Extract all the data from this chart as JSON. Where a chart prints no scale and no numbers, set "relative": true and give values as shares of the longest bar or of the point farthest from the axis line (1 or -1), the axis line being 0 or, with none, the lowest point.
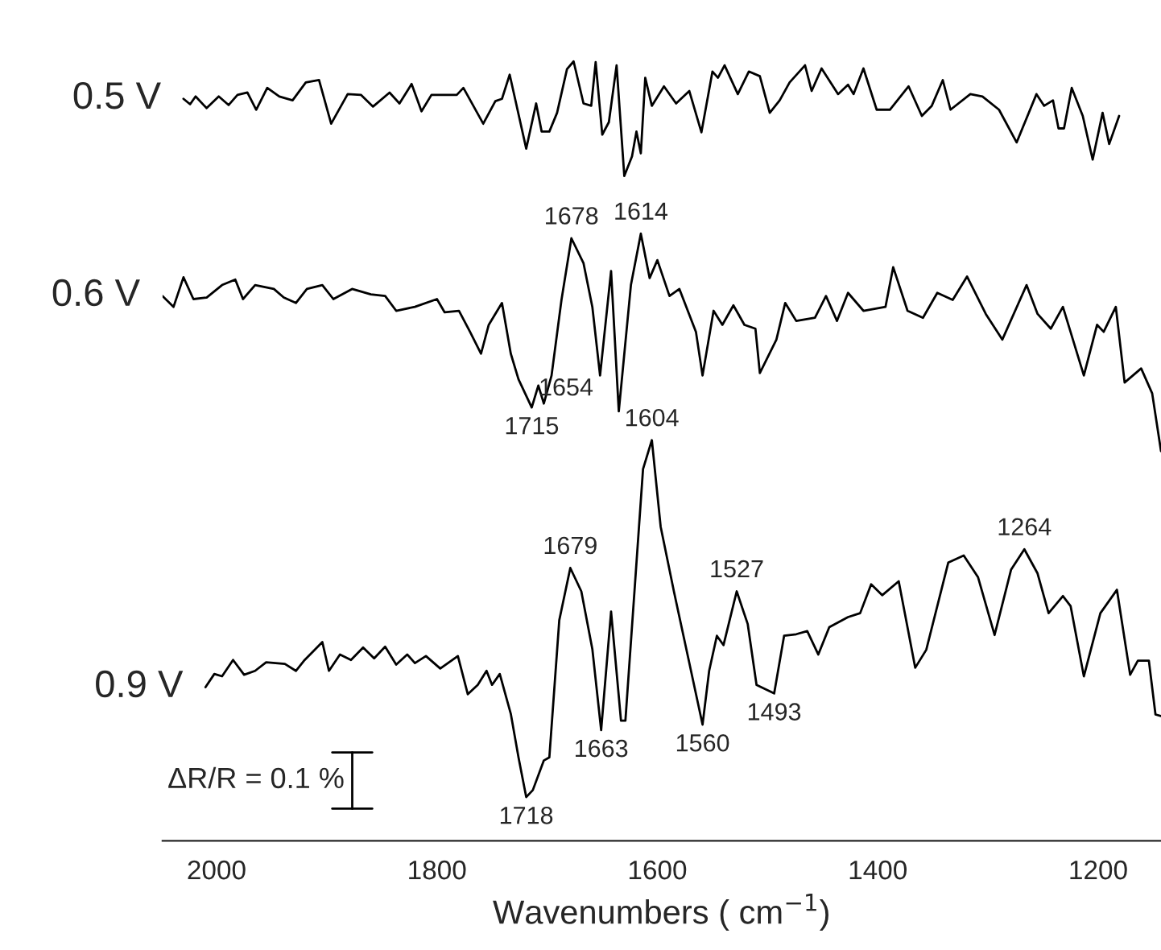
{
  "chart_data": {
    "type": "line",
    "relative": true,
    "xlabel": "Wavenumbers ( cm$^{−1}$)",
    "xlim": [
      2049,
      1143
    ],
    "xticks": [
      2000,
      1800,
      1600,
      1400,
      1200
    ],
    "tick_labels": "x",
    "grid": false,
    "legend": false,
    "marker": "none",
    "line_style": "solid",
    "series": [
      {
        "name": "0.5 V",
        "color": "#000000",
        "x": [
          2030,
          2024,
          2019,
          2009,
          1998,
          1989,
          1981,
          1972,
          1964,
          1954,
          1943,
          1931,
          1919,
          1907,
          1896,
          1881,
          1869,
          1858,
          1843,
          1834,
          1823,
          1814,
          1805,
          1782,
          1776,
          1758,
          1747,
          1741,
          1734,
          1719,
          1710,
          1705,
          1698,
          1691,
          1682,
          1676,
          1667,
          1660,
          1656,
          1650,
          1644,
          1637,
          1630,
          1623,
          1619,
          1615,
          1611,
          1605,
          1594,
          1583,
          1571,
          1560,
          1550,
          1545,
          1539,
          1527,
          1517,
          1507,
          1498,
          1489,
          1480,
          1466,
          1460,
          1451,
          1436,
          1427,
          1422,
          1413,
          1401,
          1389,
          1372,
          1360,
          1351,
          1341,
          1334,
          1316,
          1305,
          1290,
          1274,
          1256,
          1249,
          1241,
          1236,
          1231,
          1224,
          1214,
          1205,
          1196,
          1190,
          1181
        ],
        "values": [
          0.952,
          0.945,
          0.955,
          0.94,
          0.955,
          0.944,
          0.957,
          0.96,
          0.938,
          0.966,
          0.955,
          0.95,
          0.973,
          0.976,
          0.92,
          0.958,
          0.957,
          0.942,
          0.96,
          0.946,
          0.971,
          0.936,
          0.957,
          0.957,
          0.966,
          0.92,
          0.949,
          0.952,
          0.983,
          0.888,
          0.946,
          0.91,
          0.91,
          0.934,
          0.99,
          1.0,
          0.946,
          0.943,
          0.999,
          0.906,
          0.922,
          0.995,
          0.853,
          0.878,
          0.91,
          0.882,
          0.979,
          0.943,
          0.968,
          0.946,
          0.962,
          0.909,
          0.987,
          0.979,
          0.995,
          0.958,
          0.987,
          0.981,
          0.934,
          0.95,
          0.973,
          0.995,
          0.962,
          0.991,
          0.958,
          0.97,
          0.958,
          0.991,
          0.938,
          0.938,
          0.968,
          0.93,
          0.943,
          0.976,
          0.938,
          0.958,
          0.955,
          0.938,
          0.896,
          0.958,
          0.943,
          0.95,
          0.914,
          0.914,
          0.966,
          0.93,
          0.874,
          0.934,
          0.894,
          0.93
        ]
      },
      {
        "name": "0.6 V",
        "color": "#000000",
        "x": [
          2049,
          2039,
          2030,
          2021,
          2009,
          1995,
          1983,
          1976,
          1965,
          1948,
          1939,
          1928,
          1918,
          1904,
          1894,
          1877,
          1860,
          1847,
          1837,
          1820,
          1800,
          1793,
          1780,
          1770,
          1760,
          1753,
          1741,
          1733,
          1726,
          1714,
          1708,
          1703,
          1696,
          1687,
          1678,
          1667,
          1659,
          1652,
          1642,
          1635,
          1624,
          1615,
          1607,
          1600,
          1589,
          1580,
          1565,
          1559,
          1549,
          1541,
          1531,
          1521,
          1511,
          1507,
          1492,
          1484,
          1474,
          1457,
          1447,
          1437,
          1427,
          1413,
          1393,
          1386,
          1373,
          1359,
          1346,
          1332,
          1319,
          1302,
          1287,
          1265,
          1255,
          1243,
          1232,
          1213,
          1201,
          1195,
          1184,
          1176,
          1161,
          1151,
          1143
        ],
        "values": [
          0.699,
          0.685,
          0.723,
          0.695,
          0.697,
          0.713,
          0.72,
          0.695,
          0.713,
          0.708,
          0.697,
          0.69,
          0.708,
          0.713,
          0.695,
          0.708,
          0.701,
          0.699,
          0.68,
          0.685,
          0.695,
          0.678,
          0.68,
          0.653,
          0.625,
          0.662,
          0.69,
          0.625,
          0.592,
          0.556,
          0.584,
          0.561,
          0.597,
          0.694,
          0.773,
          0.741,
          0.685,
          0.597,
          0.731,
          0.551,
          0.713,
          0.779,
          0.722,
          0.745,
          0.699,
          0.708,
          0.653,
          0.597,
          0.68,
          0.662,
          0.687,
          0.662,
          0.657,
          0.6,
          0.643,
          0.69,
          0.667,
          0.671,
          0.699,
          0.667,
          0.703,
          0.68,
          0.685,
          0.736,
          0.68,
          0.671,
          0.703,
          0.694,
          0.724,
          0.676,
          0.643,
          0.713,
          0.676,
          0.657,
          0.685,
          0.597,
          0.662,
          0.653,
          0.685,
          0.588,
          0.606,
          0.574,
          0.5
        ]
      },
      {
        "name": "0.9 V",
        "color": "#000000",
        "x": [
          2010,
          2002,
          1995,
          1985,
          1975,
          1965,
          1955,
          1938,
          1928,
          1920,
          1904,
          1898,
          1888,
          1878,
          1867,
          1857,
          1847,
          1837,
          1827,
          1820,
          1810,
          1797,
          1781,
          1772,
          1763,
          1755,
          1750,
          1743,
          1733,
          1726,
          1719,
          1713,
          1703,
          1698,
          1689,
          1679,
          1669,
          1659,
          1651,
          1642,
          1633,
          1629,
          1613,
          1605,
          1597,
          1585,
          1571,
          1559,
          1553,
          1546,
          1540,
          1528,
          1518,
          1510,
          1494,
          1485,
          1474,
          1464,
          1454,
          1444,
          1427,
          1416,
          1406,
          1396,
          1381,
          1366,
          1356,
          1336,
          1322,
          1309,
          1294,
          1279,
          1267,
          1255,
          1245,
          1232,
          1225,
          1213,
          1198,
          1183,
          1171,
          1164,
          1154,
          1148,
          1143
        ],
        "values": [
          0.197,
          0.214,
          0.211,
          0.232,
          0.213,
          0.218,
          0.229,
          0.227,
          0.218,
          0.232,
          0.255,
          0.218,
          0.239,
          0.232,
          0.248,
          0.234,
          0.249,
          0.226,
          0.239,
          0.228,
          0.237,
          0.221,
          0.237,
          0.188,
          0.2,
          0.218,
          0.2,
          0.214,
          0.163,
          0.107,
          0.056,
          0.065,
          0.103,
          0.107,
          0.283,
          0.35,
          0.32,
          0.246,
          0.142,
          0.294,
          0.154,
          0.154,
          0.477,
          0.514,
          0.403,
          0.32,
          0.228,
          0.149,
          0.218,
          0.263,
          0.251,
          0.32,
          0.278,
          0.2,
          0.189,
          0.263,
          0.265,
          0.269,
          0.239,
          0.274,
          0.287,
          0.292,
          0.329,
          0.315,
          0.333,
          0.222,
          0.245,
          0.357,
          0.366,
          0.338,
          0.264,
          0.348,
          0.374,
          0.343,
          0.292,
          0.314,
          0.301,
          0.211,
          0.292,
          0.322,
          0.213,
          0.231,
          0.231,
          0.162,
          0.16
        ]
      }
    ],
    "annotations": [
      {
        "text": "1678",
        "x": 1678,
        "y": 0.773
      },
      {
        "text": "1614",
        "x": 1615,
        "y": 0.779
      },
      {
        "text": "1654",
        "x": 1652,
        "y": 0.597
      },
      {
        "text": "1715",
        "x": 1714,
        "y": 0.556
      },
      {
        "text": "1604",
        "x": 1605,
        "y": 0.514
      },
      {
        "text": "1679",
        "x": 1679,
        "y": 0.35
      },
      {
        "text": "1663",
        "x": 1651,
        "y": 0.142
      },
      {
        "text": "1718",
        "x": 1719,
        "y": 0.056
      },
      {
        "text": "1560",
        "x": 1559,
        "y": 0.149
      },
      {
        "text": "1527",
        "x": 1528,
        "y": 0.32
      },
      {
        "text": "1493",
        "x": 1494,
        "y": 0.189
      },
      {
        "text": "1264",
        "x": 1267,
        "y": 0.374
      },
      "ΔR/R = 0.1 %"
    ]
  }
}
